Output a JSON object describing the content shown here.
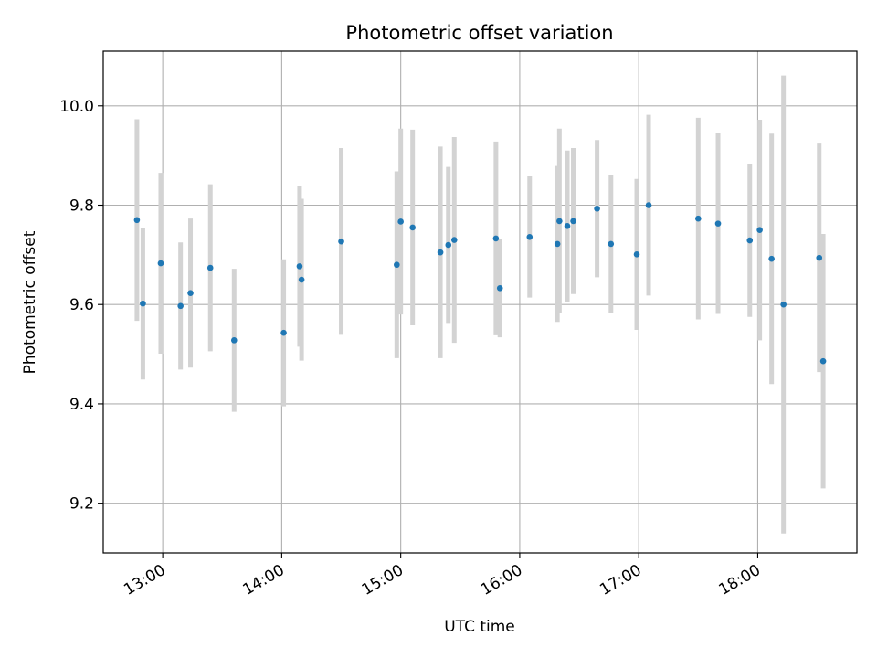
{
  "chart_data": {
    "type": "scatter",
    "title": "Photometric offset variation",
    "xlabel": "UTC time",
    "ylabel": "Photometric offset",
    "xlim": [
      "12:30",
      "18:50"
    ],
    "ylim": [
      9.1,
      10.11
    ],
    "x_ticks": [
      "13:00",
      "14:00",
      "15:00",
      "16:00",
      "17:00",
      "18:00"
    ],
    "y_ticks": [
      9.2,
      9.4,
      9.6,
      9.8,
      10.0
    ],
    "y_tick_labels": [
      "9.2",
      "9.4",
      "9.6",
      "9.8",
      "10.0"
    ],
    "grid": true,
    "marker_color": "#1f77b4",
    "errorbar_color": "#d3d3d3",
    "points": [
      {
        "x": "12:47",
        "y": 9.77,
        "yerr": 0.203
      },
      {
        "x": "12:50",
        "y": 9.602,
        "yerr": 0.153
      },
      {
        "x": "12:59",
        "y": 9.683,
        "yerr": 0.182
      },
      {
        "x": "13:09",
        "y": 9.597,
        "yerr": 0.128
      },
      {
        "x": "13:14",
        "y": 9.623,
        "yerr": 0.15
      },
      {
        "x": "13:24",
        "y": 9.674,
        "yerr": 0.168
      },
      {
        "x": "13:36",
        "y": 9.528,
        "yerr": 0.144
      },
      {
        "x": "14:01",
        "y": 9.543,
        "yerr": 0.148
      },
      {
        "x": "14:09",
        "y": 9.677,
        "yerr": 0.162
      },
      {
        "x": "14:10",
        "y": 9.65,
        "yerr": 0.163
      },
      {
        "x": "14:30",
        "y": 9.727,
        "yerr": 0.188
      },
      {
        "x": "14:58",
        "y": 9.68,
        "yerr": 0.188
      },
      {
        "x": "15:00",
        "y": 9.767,
        "yerr": 0.187
      },
      {
        "x": "15:06",
        "y": 9.755,
        "yerr": 0.197
      },
      {
        "x": "15:20",
        "y": 9.705,
        "yerr": 0.213
      },
      {
        "x": "15:24",
        "y": 9.72,
        "yerr": 0.157
      },
      {
        "x": "15:27",
        "y": 9.73,
        "yerr": 0.207
      },
      {
        "x": "15:48",
        "y": 9.733,
        "yerr": 0.195
      },
      {
        "x": "15:50",
        "y": 9.633,
        "yerr": 0.099
      },
      {
        "x": "16:05",
        "y": 9.736,
        "yerr": 0.122
      },
      {
        "x": "16:19",
        "y": 9.722,
        "yerr": 0.157
      },
      {
        "x": "16:20",
        "y": 9.768,
        "yerr": 0.186
      },
      {
        "x": "16:24",
        "y": 9.758,
        "yerr": 0.152
      },
      {
        "x": "16:27",
        "y": 9.768,
        "yerr": 0.147
      },
      {
        "x": "16:39",
        "y": 9.793,
        "yerr": 0.138
      },
      {
        "x": "16:46",
        "y": 9.722,
        "yerr": 0.139
      },
      {
        "x": "16:59",
        "y": 9.701,
        "yerr": 0.152
      },
      {
        "x": "17:05",
        "y": 9.8,
        "yerr": 0.182
      },
      {
        "x": "17:30",
        "y": 9.773,
        "yerr": 0.203
      },
      {
        "x": "17:40",
        "y": 9.763,
        "yerr": 0.182
      },
      {
        "x": "17:56",
        "y": 9.729,
        "yerr": 0.154
      },
      {
        "x": "18:01",
        "y": 9.75,
        "yerr": 0.222
      },
      {
        "x": "18:07",
        "y": 9.692,
        "yerr": 0.252
      },
      {
        "x": "18:13",
        "y": 9.6,
        "yerr": 0.461
      },
      {
        "x": "18:31",
        "y": 9.694,
        "yerr": 0.23
      },
      {
        "x": "18:33",
        "y": 9.486,
        "yerr": 0.256
      }
    ]
  }
}
